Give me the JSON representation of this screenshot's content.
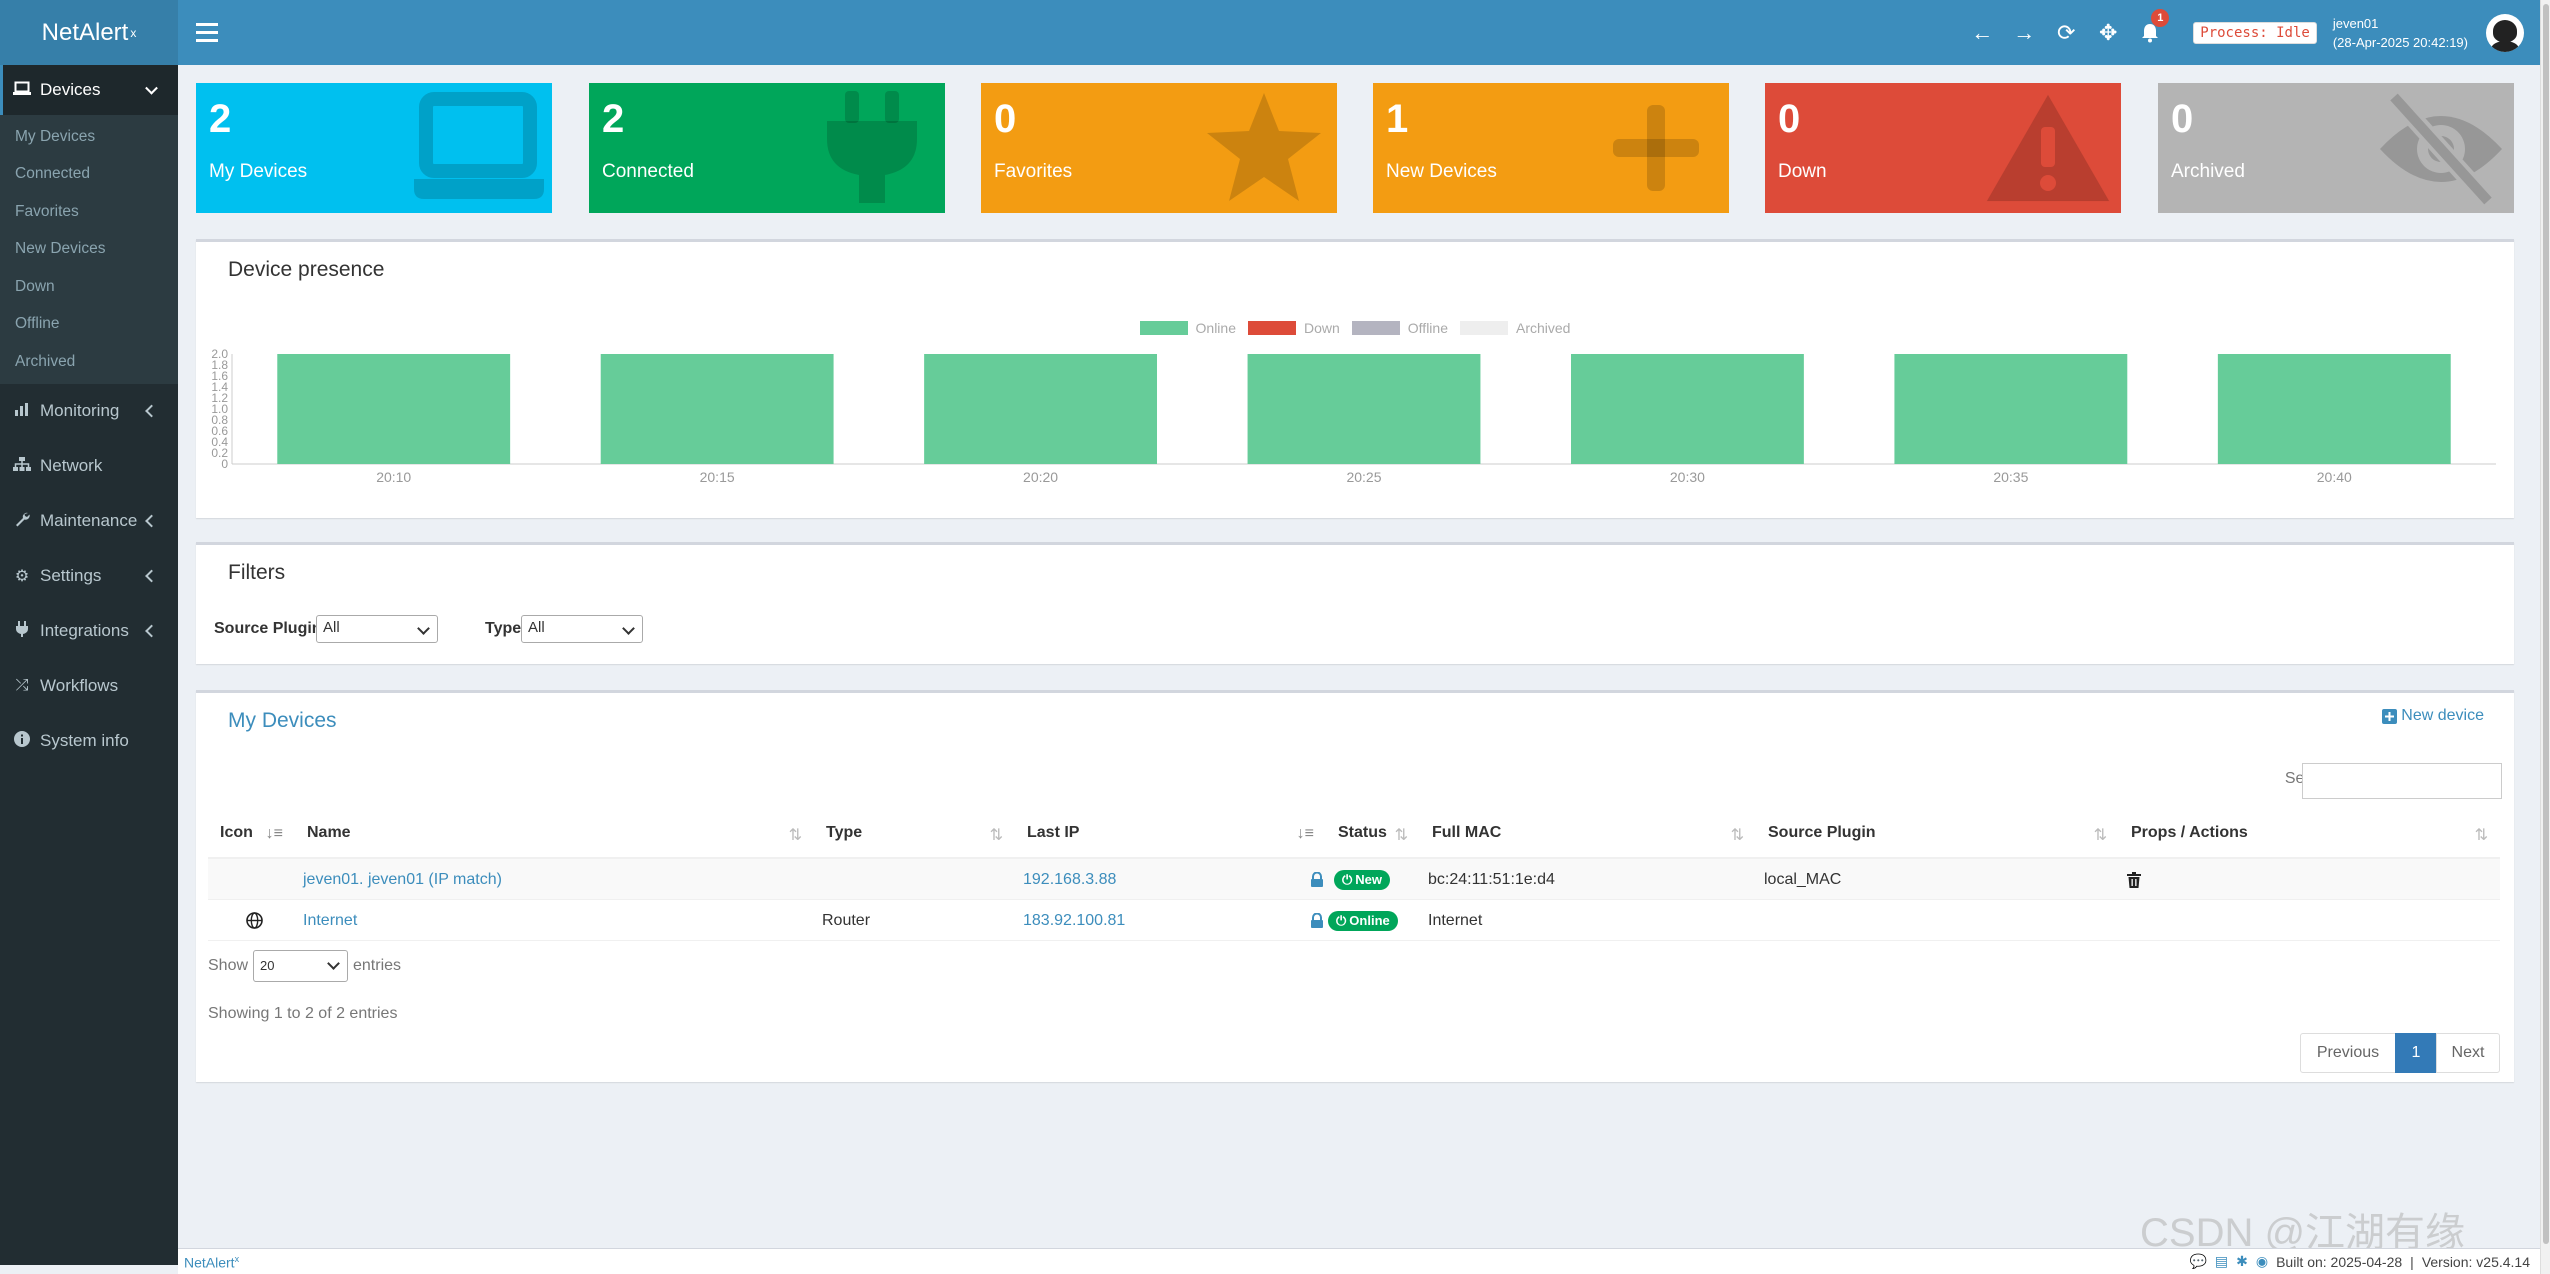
{
  "app": {
    "name": "NetAlert",
    "name_sup": "x"
  },
  "header": {
    "process": "Process: Idle",
    "user": "jeven01",
    "timestamp": "(28-Apr-2025 20:42:19)",
    "notif_count": "1"
  },
  "sidebar": {
    "devices": {
      "label": "Devices",
      "sub": [
        "My Devices",
        "Connected",
        "Favorites",
        "New Devices",
        "Down",
        "Offline",
        "Archived"
      ]
    },
    "items": [
      "Monitoring",
      "Network",
      "Maintenance",
      "Settings",
      "Integrations",
      "Workflows",
      "System info"
    ]
  },
  "infoboxes": [
    {
      "count": "2",
      "label": "My Devices",
      "color": "#00c0ef",
      "icon": "laptop-icon"
    },
    {
      "count": "2",
      "label": "Connected",
      "color": "#00a65a",
      "icon": "plug-icon"
    },
    {
      "count": "0",
      "label": "Favorites",
      "color": "#f39c12",
      "icon": "star-icon"
    },
    {
      "count": "1",
      "label": "New Devices",
      "color": "#f39c12",
      "icon": "plus-icon"
    },
    {
      "count": "0",
      "label": "Down",
      "color": "#dd4b39",
      "icon": "warning-icon"
    },
    {
      "count": "0",
      "label": "Archived",
      "color": "#b4b4b4",
      "icon": "eye-slash-icon"
    }
  ],
  "presence": {
    "title": "Device presence"
  },
  "chart_data": {
    "type": "bar",
    "categories": [
      "20:10",
      "20:15",
      "20:20",
      "20:25",
      "20:30",
      "20:35",
      "20:40"
    ],
    "series": [
      {
        "name": "Online",
        "color": "#66cc99",
        "values": [
          2,
          2,
          2,
          2,
          2,
          2,
          2
        ]
      },
      {
        "name": "Down",
        "color": "#dd4b39",
        "values": [
          0,
          0,
          0,
          0,
          0,
          0,
          0
        ]
      },
      {
        "name": "Offline",
        "color": "#b4b4c0",
        "values": [
          0,
          0,
          0,
          0,
          0,
          0,
          0
        ]
      },
      {
        "name": "Archived",
        "color": "#eeeeee",
        "values": [
          0,
          0,
          0,
          0,
          0,
          0,
          0
        ]
      }
    ],
    "ylim": [
      0,
      2
    ],
    "yticks": [
      "2.0",
      "1.8",
      "1.6",
      "1.4",
      "1.2",
      "1.0",
      "0.8",
      "0.6",
      "0.4",
      "0.2",
      "0"
    ],
    "legend": "top"
  },
  "filters": {
    "title": "Filters",
    "source_label": "Source Plugin",
    "source_value": "All",
    "type_label": "Type",
    "type_value": "All"
  },
  "devices": {
    "title": "My Devices",
    "new_device": "New device",
    "search_label": "Search:",
    "columns": [
      "Icon",
      "Name",
      "Type",
      "Last IP",
      "Status",
      "Full MAC",
      "Source Plugin",
      "Props / Actions"
    ],
    "rows": [
      {
        "name": "jeven01. jeven01 (IP match)",
        "type": "",
        "ip": "192.168.3.88",
        "status": "New",
        "mac": "bc:24:11:51:1e:d4",
        "plugin": "local_MAC"
      },
      {
        "name": "Internet",
        "type": "Router",
        "ip": "183.92.100.81",
        "status": "Online",
        "mac": "Internet",
        "plugin": ""
      }
    ],
    "show_label": "Show",
    "show_value": "20",
    "entries_label": "entries",
    "info": "Showing 1 to 2 of 2 entries",
    "prev": "Previous",
    "page": "1",
    "next": "Next"
  },
  "footer": {
    "brand": "NetAlert",
    "brand_sup": "x",
    "built": "Built on: 2025-04-28",
    "version": "Version: v25.4.14"
  },
  "watermark": "CSDN @江湖有缘"
}
